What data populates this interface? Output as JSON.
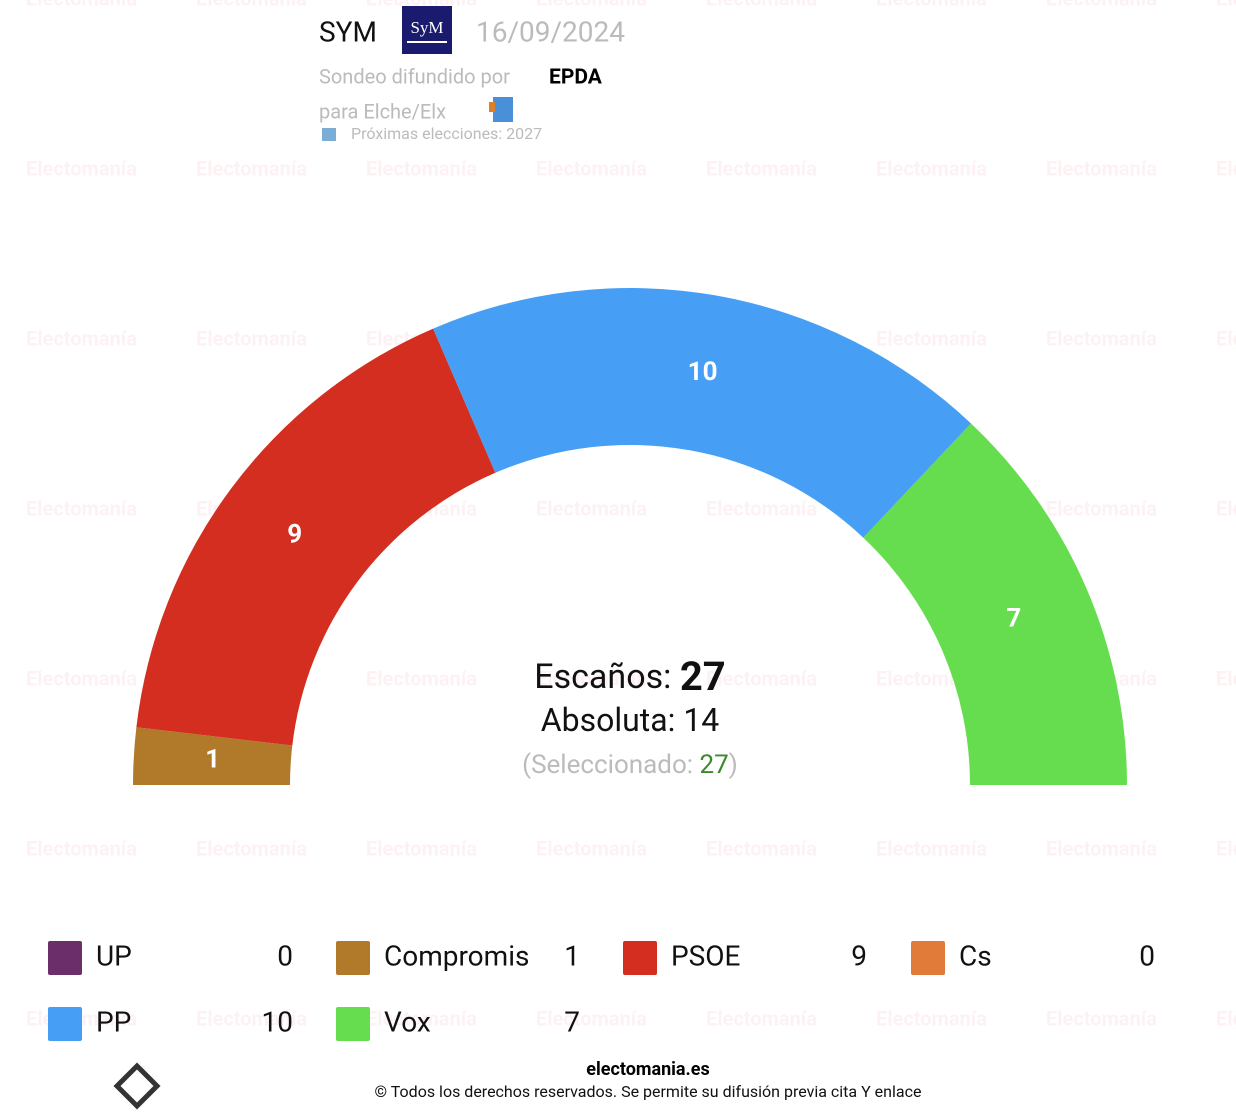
{
  "header": {
    "pollster": "SYM",
    "pollster_logo": "SyM",
    "date": "16/09/2024",
    "published_by_label": "Sondeo difundido por",
    "published_by": "EPDA",
    "region": "para Elche/Elx",
    "next_election": "Próximas elecciones: 2027"
  },
  "chart_data": {
    "type": "hemicycle",
    "categories": [
      "UP",
      "Compromis",
      "PSOE",
      "Cs",
      "PP",
      "Vox"
    ],
    "values": [
      0,
      1,
      9,
      0,
      10,
      7
    ],
    "colors": [
      "#6b2e6b",
      "#b07a2a",
      "#d42e20",
      "#e07b39",
      "#479ff5",
      "#66dd4f"
    ],
    "seats_label": "Escaños:",
    "seats_total": 27,
    "majority_label": "Absoluta:",
    "majority": 14,
    "selected_label_open": "(Seleccionado:",
    "selected": 27,
    "selected_label_close": ")"
  },
  "watermark": "Electomanía",
  "footer": {
    "site": "electomania.es",
    "copyright": "© Todos los derechos reservados. Se permite su difusión previa cita Y enlace"
  }
}
